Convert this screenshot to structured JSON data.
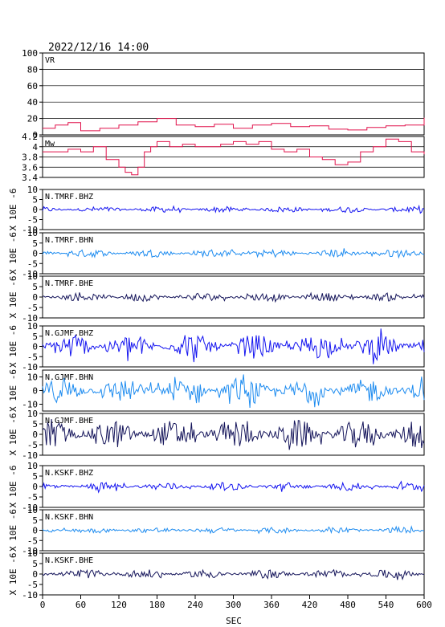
{
  "title": "2022/12/16  14:00",
  "x_axis": {
    "label": "SEC",
    "ticks": [
      0,
      60,
      120,
      180,
      240,
      300,
      360,
      420,
      480,
      540,
      600
    ],
    "range": [
      0,
      600
    ]
  },
  "y_unit_label": "X 10E -6",
  "colors": {
    "bhz": "#1414f0",
    "bhn": "#1e8cf0",
    "bhe": "#14145a",
    "vr_mw": "#e0104a"
  },
  "chart_data": [
    {
      "type": "line",
      "label": "VR",
      "ylim": [
        0,
        100
      ],
      "yticks": [
        0,
        20,
        40,
        60,
        80,
        100
      ],
      "grid": true,
      "series": [
        {
          "x": [
            0,
            20,
            40,
            60,
            90,
            120,
            150,
            180,
            210,
            240,
            270,
            300,
            330,
            360,
            390,
            420,
            450,
            480,
            510,
            540,
            570,
            600
          ],
          "values": [
            8,
            12,
            15,
            5,
            8,
            12,
            16,
            20,
            12,
            10,
            13,
            8,
            12,
            14,
            10,
            11,
            7,
            6,
            9,
            11,
            12,
            21
          ]
        }
      ]
    },
    {
      "type": "line",
      "label": "Mw",
      "ylim": [
        3.4,
        4.2
      ],
      "yticks": [
        3.4,
        3.6,
        3.8,
        4.0,
        4.2
      ],
      "grid": true,
      "series": [
        {
          "x": [
            0,
            20,
            40,
            60,
            80,
            100,
            120,
            130,
            140,
            150,
            160,
            170,
            180,
            200,
            220,
            240,
            260,
            280,
            300,
            320,
            340,
            360,
            380,
            400,
            420,
            440,
            460,
            480,
            500,
            520,
            540,
            560,
            580,
            600
          ],
          "values": [
            3.9,
            3.9,
            3.95,
            3.9,
            4.0,
            3.75,
            3.6,
            3.5,
            3.45,
            3.6,
            3.9,
            4.0,
            4.1,
            4.0,
            4.05,
            4.0,
            4.0,
            4.05,
            4.1,
            4.05,
            4.1,
            3.95,
            3.9,
            3.95,
            3.8,
            3.75,
            3.65,
            3.7,
            3.9,
            4.0,
            4.15,
            4.1,
            3.9,
            3.85
          ]
        }
      ]
    },
    {
      "type": "line",
      "label": "N.TMRF.BHZ",
      "channel": "bhz",
      "ylim": [
        -10,
        10
      ],
      "yticks": [
        -10,
        -5,
        0,
        5,
        10
      ],
      "amplitude": 1.5
    },
    {
      "type": "line",
      "label": "N.TMRF.BHN",
      "channel": "bhn",
      "ylim": [
        -10,
        10
      ],
      "yticks": [
        -10,
        -5,
        0,
        5,
        10
      ],
      "amplitude": 2.0
    },
    {
      "type": "line",
      "label": "N.TMRF.BHE",
      "channel": "bhe",
      "ylim": [
        -10,
        10
      ],
      "yticks": [
        -10,
        -5,
        0,
        5,
        10
      ],
      "amplitude": 2.0
    },
    {
      "type": "line",
      "label": "N.GJMF.BHZ",
      "channel": "bhz",
      "ylim": [
        -10,
        10
      ],
      "yticks": [
        -10,
        -5,
        0,
        5,
        10
      ],
      "amplitude": 6.0
    },
    {
      "type": "line",
      "label": "N.GJMF.BHN",
      "channel": "bhn",
      "ylim": [
        -15,
        15
      ],
      "yticks": [
        -10,
        0,
        10
      ],
      "amplitude": 9.0
    },
    {
      "type": "line",
      "label": "N.GJMF.BHE",
      "channel": "bhe",
      "ylim": [
        -10,
        10
      ],
      "yticks": [
        -10,
        -5,
        0,
        5,
        10
      ],
      "amplitude": 7.0
    },
    {
      "type": "line",
      "label": "N.KSKF.BHZ",
      "channel": "bhz",
      "ylim": [
        -10,
        10
      ],
      "yticks": [
        -10,
        -5,
        0,
        5,
        10
      ],
      "amplitude": 2.0
    },
    {
      "type": "line",
      "label": "N.KSKF.BHN",
      "channel": "bhn",
      "ylim": [
        -10,
        10
      ],
      "yticks": [
        -10,
        -5,
        0,
        5,
        10
      ],
      "amplitude": 1.5
    },
    {
      "type": "line",
      "label": "N.KSKF.BHE",
      "channel": "bhe",
      "ylim": [
        -10,
        10
      ],
      "yticks": [
        -10,
        -5,
        0,
        5,
        10
      ],
      "amplitude": 2.2
    }
  ]
}
